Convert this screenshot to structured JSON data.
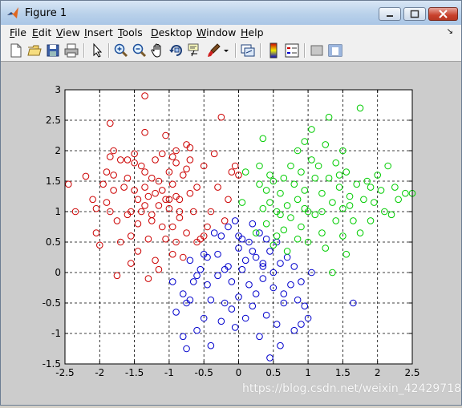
{
  "window": {
    "title": "Figure 1"
  },
  "menubar": {
    "items": [
      {
        "label": "File",
        "key": "F",
        "rest": "ile"
      },
      {
        "label": "Edit",
        "key": "E",
        "rest": "dit"
      },
      {
        "label": "View",
        "key": "V",
        "rest": "iew"
      },
      {
        "label": "Insert",
        "key": "I",
        "rest": "nsert"
      },
      {
        "label": "Tools",
        "key": "T",
        "rest": "ools"
      },
      {
        "label": "Desktop",
        "key": "D",
        "rest": "esktop"
      },
      {
        "label": "Window",
        "key": "W",
        "rest": "indow"
      },
      {
        "label": "Help",
        "key": "H",
        "rest": "elp"
      }
    ]
  },
  "toolbar": {
    "icons": [
      "new-figure-icon",
      "open-file-icon",
      "save-icon",
      "print-icon",
      "edit-plot-arrow-icon",
      "zoom-in-icon",
      "zoom-out-icon",
      "pan-hand-icon",
      "rotate-3d-icon",
      "data-cursor-icon",
      "brush-icon",
      "brush-dropdown-icon",
      "link-plot-icon",
      "colorbar-icon",
      "legend-icon",
      "hide-plot-tools-icon",
      "show-plot-tools-icon"
    ]
  },
  "watermark": "https://blog.csdn.net/weixin_42429718",
  "chart_data": {
    "type": "scatter",
    "xlim": [
      -2.5,
      2.5
    ],
    "ylim": [
      -1.5,
      3
    ],
    "xticks": [
      "-2.5",
      "-2",
      "-1.5",
      "-1",
      "-0.5",
      "0",
      "0.5",
      "1",
      "1.5",
      "2",
      "2.5"
    ],
    "yticks": [
      "-1.5",
      "-1",
      "-0.5",
      "0",
      "0.5",
      "1",
      "1.5",
      "2",
      "2.5",
      "3"
    ],
    "grid": "dashed",
    "marker": "circle",
    "series": [
      {
        "color": "#cc0000",
        "points": [
          [
            -2.45,
            1.45
          ],
          [
            -2.35,
            1.0
          ],
          [
            -2.2,
            1.58
          ],
          [
            -2.1,
            1.2
          ],
          [
            -2.05,
            1.05
          ],
          [
            -2.05,
            0.65
          ],
          [
            -2.0,
            0.45
          ],
          [
            -1.95,
            1.45
          ],
          [
            -1.9,
            1.65
          ],
          [
            -1.85,
            1.9
          ],
          [
            -1.85,
            2.45
          ],
          [
            -1.85,
            1.0
          ],
          [
            -1.8,
            1.6
          ],
          [
            -1.8,
            1.35
          ],
          [
            -1.8,
            2.0
          ],
          [
            -1.75,
            0.85
          ],
          [
            -1.75,
            -0.05
          ],
          [
            -1.7,
            1.85
          ],
          [
            -1.65,
            1.4
          ],
          [
            -1.6,
            1.55
          ],
          [
            -1.6,
            1.85
          ],
          [
            -1.55,
            1.0
          ],
          [
            -1.55,
            0.6
          ],
          [
            -1.55,
            0.15
          ],
          [
            -1.5,
            1.95
          ],
          [
            -1.5,
            1.35
          ],
          [
            -1.5,
            1.8
          ],
          [
            -1.45,
            1.2
          ],
          [
            -1.45,
            0.35
          ],
          [
            -1.45,
            0.8
          ],
          [
            -1.4,
            1.75
          ],
          [
            -1.4,
            1.0
          ],
          [
            -1.35,
            2.9
          ],
          [
            -1.35,
            1.4
          ],
          [
            -1.35,
            2.3
          ],
          [
            -1.35,
            1.65
          ],
          [
            -1.3,
            1.25
          ],
          [
            -1.3,
            0.55
          ],
          [
            -1.3,
            -0.1
          ],
          [
            -1.25,
            0.95
          ],
          [
            -1.25,
            1.55
          ],
          [
            -1.2,
            1.3
          ],
          [
            -1.2,
            0.2
          ],
          [
            -1.2,
            1.85
          ],
          [
            -1.15,
            1.1
          ],
          [
            -1.15,
            0.05
          ],
          [
            -1.15,
            1.5
          ],
          [
            -1.1,
            1.95
          ],
          [
            -1.1,
            1.35
          ],
          [
            -1.1,
            0.75
          ],
          [
            -1.05,
            1.2
          ],
          [
            -1.05,
            2.25
          ],
          [
            -1.05,
            0.55
          ],
          [
            -1.0,
            1.65
          ],
          [
            -1.0,
            1.05
          ],
          [
            -0.95,
            1.9
          ],
          [
            -0.95,
            0.3
          ],
          [
            -0.95,
            1.45
          ],
          [
            -0.9,
            0.5
          ],
          [
            -0.9,
            1.8
          ],
          [
            -0.9,
            2.0
          ],
          [
            -0.85,
            1.2
          ],
          [
            -0.85,
            0.9
          ],
          [
            -0.85,
            1.0
          ],
          [
            -0.8,
            1.6
          ],
          [
            -0.8,
            0.25
          ],
          [
            -0.75,
            2.1
          ],
          [
            -0.75,
            1.7
          ],
          [
            -0.75,
            0.65
          ],
          [
            -0.7,
            1.3
          ],
          [
            -0.7,
            2.05
          ],
          [
            -0.7,
            1.85
          ],
          [
            -0.65,
            1.0
          ],
          [
            -0.6,
            1.4
          ],
          [
            -0.6,
            0.5
          ],
          [
            -0.55,
            0.55
          ],
          [
            -0.5,
            1.75
          ],
          [
            -0.5,
            0.6
          ],
          [
            -0.45,
            0.75
          ],
          [
            -0.4,
            1.0
          ],
          [
            -0.35,
            1.95
          ],
          [
            -0.3,
            1.4
          ],
          [
            -0.25,
            2.55
          ],
          [
            -0.2,
            0.85
          ],
          [
            -0.15,
            1.2
          ],
          [
            -0.1,
            1.65
          ],
          [
            -0.05,
            1.75
          ],
          [
            0.0,
            1.6
          ],
          [
            -1.9,
            1.15
          ],
          [
            -1.7,
            0.5
          ],
          [
            -1.6,
            0.95
          ],
          [
            -1.0,
            1.2
          ],
          [
            -1.25,
            0.85
          ],
          [
            -0.95,
            0.75
          ],
          [
            -1.35,
            1.1
          ],
          [
            -0.9,
            1.25
          ]
        ]
      },
      {
        "color": "#0000cc",
        "points": [
          [
            -0.95,
            -0.15
          ],
          [
            -0.9,
            -0.65
          ],
          [
            -0.8,
            -0.35
          ],
          [
            -0.8,
            -1.05
          ],
          [
            -0.75,
            -0.5
          ],
          [
            -0.75,
            -1.25
          ],
          [
            -0.7,
            0.2
          ],
          [
            -0.7,
            -0.45
          ],
          [
            -0.65,
            -0.15
          ],
          [
            -0.6,
            -0.05
          ],
          [
            -0.6,
            -0.95
          ],
          [
            -0.55,
            0.05
          ],
          [
            -0.5,
            0.3
          ],
          [
            -0.5,
            -0.75
          ],
          [
            -0.45,
            -0.2
          ],
          [
            -0.45,
            0.25
          ],
          [
            -0.4,
            -1.2
          ],
          [
            -0.4,
            -0.45
          ],
          [
            -0.35,
            0.65
          ],
          [
            -0.3,
            0.3
          ],
          [
            -0.3,
            -0.05
          ],
          [
            -0.25,
            -0.8
          ],
          [
            -0.25,
            0.6
          ],
          [
            -0.2,
            -0.5
          ],
          [
            -0.15,
            0.75
          ],
          [
            -0.15,
            0.1
          ],
          [
            -0.1,
            -0.15
          ],
          [
            -0.1,
            -0.6
          ],
          [
            -0.05,
            0.85
          ],
          [
            -0.05,
            -0.9
          ],
          [
            0.0,
            0.4
          ],
          [
            0.0,
            -0.4
          ],
          [
            0.05,
            0.55
          ],
          [
            0.05,
            0.05
          ],
          [
            0.1,
            0.2
          ],
          [
            0.1,
            -0.75
          ],
          [
            0.15,
            -0.2
          ],
          [
            0.15,
            0.5
          ],
          [
            0.2,
            0.8
          ],
          [
            0.2,
            -0.55
          ],
          [
            0.25,
            0.25
          ],
          [
            0.25,
            -0.35
          ],
          [
            0.3,
            0.65
          ],
          [
            0.3,
            -1.05
          ],
          [
            0.35,
            0.1
          ],
          [
            0.35,
            -0.1
          ],
          [
            0.4,
            0.55
          ],
          [
            0.4,
            -0.7
          ],
          [
            0.45,
            0.35
          ],
          [
            0.45,
            -1.4
          ],
          [
            0.5,
            0.0
          ],
          [
            0.5,
            -0.25
          ],
          [
            0.55,
            0.5
          ],
          [
            0.55,
            -0.85
          ],
          [
            0.6,
            0.15
          ],
          [
            0.6,
            -1.2
          ],
          [
            0.65,
            -0.5
          ],
          [
            0.7,
            0.25
          ],
          [
            0.75,
            -0.2
          ],
          [
            0.8,
            -0.95
          ],
          [
            0.8,
            0.1
          ],
          [
            0.85,
            -0.45
          ],
          [
            0.9,
            -0.15
          ],
          [
            0.95,
            -0.55
          ],
          [
            1.0,
            -0.75
          ],
          [
            1.05,
            0.0
          ],
          [
            1.65,
            -0.5
          ],
          [
            0.2,
            0.35
          ],
          [
            -0.2,
            0.05
          ],
          [
            0.0,
            0.6
          ],
          [
            0.35,
            0.15
          ],
          [
            0.65,
            -0.35
          ],
          [
            0.9,
            -0.85
          ]
        ]
      },
      {
        "color": "#00cc00",
        "points": [
          [
            0.05,
            1.15
          ],
          [
            0.1,
            1.65
          ],
          [
            0.25,
            0.65
          ],
          [
            0.3,
            1.45
          ],
          [
            0.3,
            1.75
          ],
          [
            0.35,
            1.05
          ],
          [
            0.35,
            2.2
          ],
          [
            0.4,
            1.35
          ],
          [
            0.4,
            0.8
          ],
          [
            0.45,
            1.15
          ],
          [
            0.5,
            0.45
          ],
          [
            0.5,
            1.5
          ],
          [
            0.55,
            1.0
          ],
          [
            0.55,
            0.6
          ],
          [
            0.6,
            1.3
          ],
          [
            0.65,
            1.55
          ],
          [
            0.65,
            0.7
          ],
          [
            0.7,
            1.1
          ],
          [
            0.7,
            0.35
          ],
          [
            0.75,
            1.75
          ],
          [
            0.75,
            0.9
          ],
          [
            0.8,
            1.45
          ],
          [
            0.85,
            2.0
          ],
          [
            0.85,
            1.2
          ],
          [
            0.9,
            1.65
          ],
          [
            0.9,
            0.75
          ],
          [
            0.95,
            2.15
          ],
          [
            0.95,
            1.35
          ],
          [
            1.0,
            1.0
          ],
          [
            1.0,
            0.5
          ],
          [
            1.05,
            1.85
          ],
          [
            1.05,
            2.35
          ],
          [
            1.1,
            1.55
          ],
          [
            1.1,
            0.95
          ],
          [
            1.15,
            1.75
          ],
          [
            1.2,
            0.65
          ],
          [
            1.2,
            1.3
          ],
          [
            1.25,
            2.1
          ],
          [
            1.25,
            0.4
          ],
          [
            1.3,
            1.55
          ],
          [
            1.3,
            2.55
          ],
          [
            1.35,
            1.15
          ],
          [
            1.35,
            0.0
          ],
          [
            1.4,
            1.8
          ],
          [
            1.4,
            0.85
          ],
          [
            1.45,
            1.4
          ],
          [
            1.5,
            2.0
          ],
          [
            1.5,
            1.05
          ],
          [
            1.55,
            0.3
          ],
          [
            1.55,
            1.65
          ],
          [
            1.6,
            1.25
          ],
          [
            1.65,
            0.85
          ],
          [
            1.7,
            1.45
          ],
          [
            1.75,
            0.65
          ],
          [
            1.75,
            2.7
          ],
          [
            1.8,
            1.2
          ],
          [
            1.85,
            1.5
          ],
          [
            1.9,
            0.85
          ],
          [
            1.95,
            1.15
          ],
          [
            2.0,
            1.6
          ],
          [
            2.05,
            1.35
          ],
          [
            2.1,
            1.0
          ],
          [
            2.15,
            1.75
          ],
          [
            2.2,
            0.95
          ],
          [
            2.25,
            1.4
          ],
          [
            2.3,
            1.2
          ],
          [
            2.4,
            1.3
          ],
          [
            2.5,
            1.3
          ],
          [
            0.85,
            0.55
          ],
          [
            1.5,
            0.6
          ],
          [
            1.2,
            1.0
          ],
          [
            1.6,
            1.1
          ],
          [
            0.95,
            1.05
          ],
          [
            0.6,
            0.95
          ],
          [
            1.45,
            1.6
          ],
          [
            1.9,
            1.4
          ],
          [
            0.45,
            1.6
          ]
        ]
      }
    ]
  }
}
